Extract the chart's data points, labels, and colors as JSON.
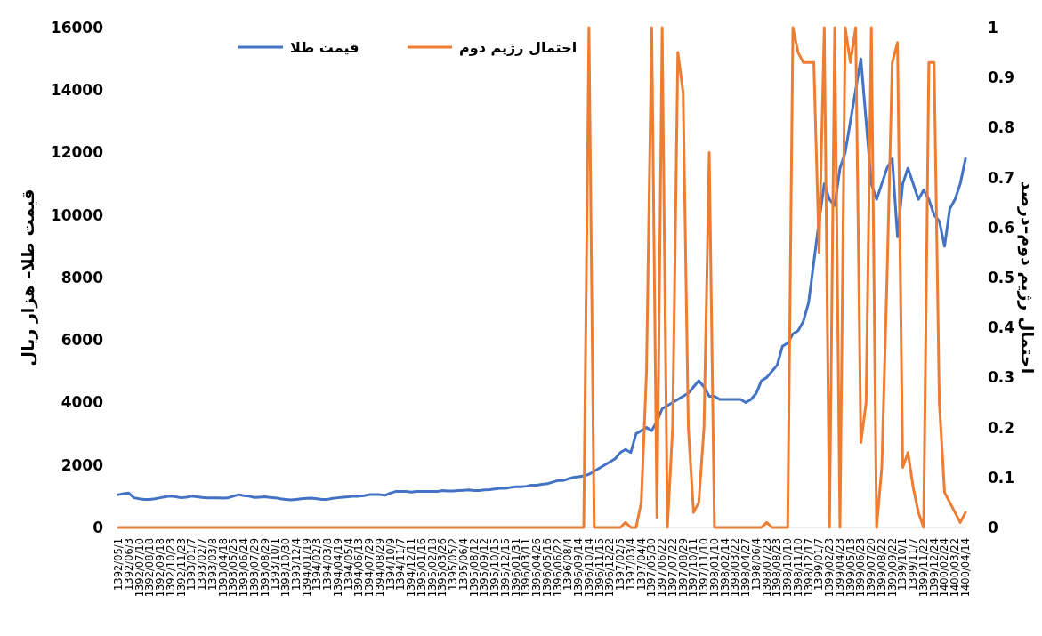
{
  "chart_data": {
    "type": "line",
    "categories": [
      "1392/05/1",
      null,
      "1392/06/3",
      null,
      "1392/07/10",
      null,
      "1392/08/18",
      null,
      "1392/09/18",
      null,
      "1392/10/23",
      null,
      "1392/11/23",
      null,
      "1393/01/7",
      null,
      "1393/02/7",
      null,
      "1393/03/8",
      null,
      "1393/04/18",
      null,
      "1393/05/25",
      null,
      "1393/06/24",
      null,
      "1393/07/29",
      null,
      "1393/08/29",
      null,
      "1393/10/1",
      null,
      "1393/10/30",
      null,
      "1393/12/4",
      null,
      "1394/01/19",
      null,
      "1394/02/3",
      null,
      "1394/03/8",
      null,
      "1394/04/19",
      null,
      "1394/05/4",
      null,
      "1394/06/13",
      null,
      "1394/07/29",
      null,
      "1394/08/29",
      null,
      "1394/10/9",
      null,
      "1394/11/7",
      null,
      "1394/12/11",
      null,
      "1395/01/16",
      null,
      "1395/02/18",
      null,
      "1395/03/26",
      null,
      "1395/05/2",
      null,
      "1395/06/4",
      null,
      "1395/08/12",
      null,
      "1395/09/12",
      null,
      "1395/10/15",
      null,
      "1395/12/15",
      null,
      "1396/01/31",
      null,
      "1396/03/11",
      null,
      "1396/04/26",
      null,
      "1396/05/16",
      null,
      "1396/06/22",
      null,
      "1396/08/4",
      null,
      "1396/09/14",
      null,
      "1396/10/14",
      null,
      "1396/11/15",
      null,
      "1396/12/22",
      null,
      "1397/02/5",
      null,
      "1397/03/4",
      null,
      "1397/04/4",
      null,
      "1397/05/30",
      null,
      "1397/06/22",
      null,
      "1397/07/22",
      null,
      "1397/08/29",
      null,
      "1397/10/11",
      null,
      "1397/11/10",
      null,
      "1398/01/10",
      null,
      "1398/02/14",
      null,
      "1398/03/22",
      null,
      "1398/04/27",
      null,
      "1398/06/4",
      null,
      "1398/07/23",
      null,
      "1398/08/23",
      null,
      "1398/10/10",
      null,
      "1398/11/10",
      null,
      "1398/12/17",
      null,
      "1399/01/7",
      null,
      "1399/02/23",
      null,
      "1399/04/23",
      null,
      "1399/05/13",
      null,
      "1399/06/23",
      null,
      "1399/07/20",
      null,
      "1399/08/22",
      null,
      "1399/09/22",
      null,
      "1399/10/1",
      null,
      "1399/11/7",
      null,
      "1399/11/22",
      null,
      "1399/12/24",
      null,
      "1400/02/24",
      null,
      "1400/03/22",
      null,
      "1400/04/14"
    ],
    "series": [
      {
        "name": "قيمت طلا",
        "color": "#4472c4",
        "values": [
          1050,
          1080,
          1100,
          950,
          920,
          900,
          900,
          920,
          950,
          980,
          1000,
          980,
          950,
          970,
          1000,
          980,
          960,
          950,
          950,
          950,
          940,
          950,
          1000,
          1050,
          1020,
          1000,
          960,
          970,
          980,
          960,
          950,
          920,
          900,
          880,
          900,
          920,
          930,
          940,
          920,
          900,
          900,
          930,
          950,
          970,
          980,
          1000,
          1000,
          1020,
          1050,
          1050,
          1050,
          1030,
          1100,
          1150,
          1150,
          1150,
          1130,
          1150,
          1150,
          1150,
          1150,
          1150,
          1180,
          1170,
          1170,
          1180,
          1190,
          1200,
          1180,
          1180,
          1200,
          1210,
          1230,
          1250,
          1250,
          1280,
          1300,
          1300,
          1320,
          1350,
          1350,
          1380,
          1400,
          1450,
          1500,
          1500,
          1550,
          1600,
          1620,
          1650,
          1700,
          1800,
          1900,
          2000,
          2100,
          2200,
          2400,
          2500,
          2400,
          3000,
          3100,
          3200,
          3100,
          3400,
          3800,
          3900,
          4000,
          4100,
          4200,
          4300,
          4500,
          4700,
          4500,
          4200,
          4200,
          4100,
          4100,
          4100,
          4100,
          4100,
          4000,
          4100,
          4300,
          4700,
          4800,
          5000,
          5200,
          5800,
          5900,
          6200,
          6300,
          6600,
          7200,
          8500,
          9800,
          11000,
          10500,
          10300,
          11500,
          12000,
          13000,
          14000,
          15000,
          13000,
          11000,
          10500,
          11000,
          11500,
          11800,
          9300,
          11000,
          11500,
          11000,
          10500,
          10800,
          10500,
          10000,
          9800,
          9000,
          10200,
          10500,
          11000,
          11800
        ]
      },
      {
        "name": "احتمال رژيم دوم",
        "color": "#ed7d31",
        "axis": "y2",
        "values": [
          0,
          0,
          0,
          0,
          0,
          0,
          0,
          0,
          0,
          0,
          0,
          0,
          0,
          0,
          0,
          0,
          0,
          0,
          0,
          0,
          0,
          0,
          0,
          0,
          0,
          0,
          0,
          0,
          0,
          0,
          0,
          0,
          0,
          0,
          0,
          0,
          0,
          0,
          0,
          0,
          0,
          0,
          0,
          0,
          0,
          0,
          0,
          0,
          0,
          0,
          0,
          0,
          0,
          0,
          0,
          0,
          0,
          0,
          0,
          0,
          0,
          0,
          0,
          0,
          0,
          0,
          0,
          0,
          0,
          0,
          0,
          0,
          0,
          0,
          0,
          0,
          0,
          0,
          0,
          0,
          0,
          0,
          0,
          0,
          0,
          0,
          0,
          0,
          0,
          0,
          1,
          0,
          0,
          0,
          0,
          0,
          0,
          0.01,
          0,
          0,
          0.05,
          0.31,
          1,
          0.02,
          1,
          0,
          0.2,
          0.95,
          0.87,
          0.2,
          0.03,
          0.05,
          0.2,
          0.75,
          0,
          0,
          0,
          0,
          0,
          0,
          0,
          0,
          0,
          0,
          0.01,
          0,
          0,
          0,
          0,
          1,
          0.95,
          0.93,
          0.93,
          0.93,
          0.55,
          1,
          0,
          1,
          0,
          1,
          0.93,
          1,
          0.17,
          0.25,
          1,
          0,
          0.12,
          0.5,
          0.93,
          0.97,
          0.12,
          0.15,
          0.08,
          0.03,
          0,
          0.93,
          0.93,
          0.25,
          0.07,
          0.05,
          0.03,
          0.01,
          0.03
        ]
      }
    ],
    "ylim": [
      0,
      16000
    ],
    "yticks": [
      0,
      2000,
      4000,
      6000,
      8000,
      10000,
      12000,
      14000,
      16000
    ],
    "y2lim": [
      0,
      1
    ],
    "y2ticks": [
      0,
      0.1,
      0.2,
      0.3,
      0.4,
      0.5,
      0.6,
      0.7,
      0.8,
      0.9,
      1
    ],
    "ylabel": "قيمت طلا– هزار ريال",
    "y2label": "احتمال رژيم دوم–درصد",
    "legend": "top"
  }
}
